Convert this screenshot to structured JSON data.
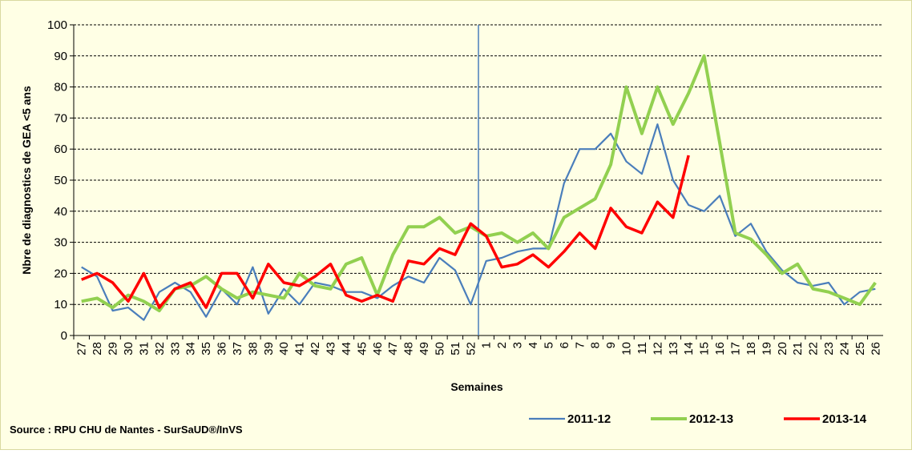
{
  "chart_data": {
    "type": "line",
    "ylabel": "Nbre de diagnostics de GEA  <5 ans",
    "xlabel": "Semaines",
    "source": "Source : RPU CHU de Nantes - SurSaUD®/InVS",
    "categories": [
      "27",
      "28",
      "29",
      "30",
      "31",
      "32",
      "33",
      "34",
      "35",
      "36",
      "37",
      "38",
      "39",
      "40",
      "41",
      "42",
      "43",
      "44",
      "45",
      "46",
      "47",
      "48",
      "49",
      "50",
      "51",
      "52",
      "1",
      "2",
      "3",
      "4",
      "5",
      "6",
      "7",
      "8",
      "9",
      "10",
      "11",
      "12",
      "13",
      "14",
      "15",
      "16",
      "17",
      "18",
      "19",
      "20",
      "21",
      "22",
      "23",
      "24",
      "25",
      "26"
    ],
    "series": [
      {
        "name": "2011-12",
        "color": "#4a7ebb",
        "values": [
          22,
          19,
          8,
          9,
          5,
          14,
          17,
          14,
          6,
          15,
          10,
          22,
          7,
          15,
          10,
          17,
          16,
          14,
          14,
          12,
          16,
          19,
          17,
          25,
          21,
          10,
          24,
          25,
          27,
          28,
          28,
          49,
          60,
          60,
          65,
          56,
          52,
          68,
          50,
          42,
          40,
          45,
          32,
          36,
          27,
          21,
          17,
          16,
          17,
          10,
          14,
          15
        ]
      },
      {
        "name": "2012-13",
        "color": "#92d050",
        "values": [
          11,
          12,
          9,
          13,
          11,
          8,
          15,
          16,
          19,
          15,
          12,
          14,
          13,
          12,
          20,
          16,
          15,
          23,
          25,
          13,
          26,
          35,
          35,
          38,
          33,
          35,
          32,
          33,
          30,
          33,
          28,
          38,
          41,
          44,
          55,
          80,
          65,
          80,
          68,
          78,
          90,
          62,
          33,
          31,
          26,
          20,
          23,
          15,
          14,
          12,
          10,
          17
        ]
      },
      {
        "name": "2013-14",
        "color": "#ff0000",
        "values": [
          18,
          20,
          17,
          11,
          20,
          9,
          15,
          17,
          9,
          20,
          20,
          12,
          23,
          17,
          16,
          19,
          23,
          13,
          11,
          13,
          11,
          24,
          23,
          28,
          26,
          36,
          32,
          22,
          23,
          26,
          22,
          27,
          33,
          28,
          41,
          35,
          33,
          43,
          38,
          58,
          null,
          null,
          null,
          null,
          null,
          null,
          null,
          null,
          null,
          null,
          null,
          null
        ]
      }
    ],
    "ylim": [
      0,
      100
    ],
    "yticks": [
      0,
      10,
      20,
      30,
      40,
      50,
      60,
      70,
      80,
      90,
      100
    ],
    "grid": true
  }
}
